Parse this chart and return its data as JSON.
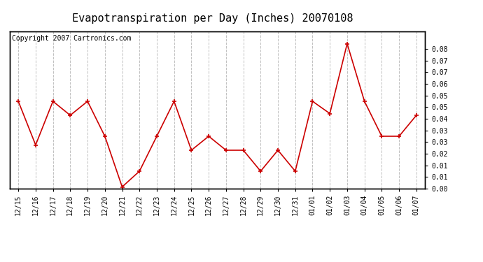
{
  "title": "Evapotranspiration per Day (Inches) 20070108",
  "copyright_text": "Copyright 2007 Cartronics.com",
  "x_labels": [
    "12/15",
    "12/16",
    "12/17",
    "12/18",
    "12/19",
    "12/20",
    "12/21",
    "12/22",
    "12/23",
    "12/24",
    "12/25",
    "12/26",
    "12/27",
    "12/28",
    "12/29",
    "12/30",
    "12/31",
    "01/01",
    "01/02",
    "01/03",
    "01/04",
    "01/05",
    "01/06",
    "01/07"
  ],
  "y_values": [
    0.05,
    0.025,
    0.05,
    0.042,
    0.05,
    0.03,
    0.001,
    0.01,
    0.03,
    0.05,
    0.022,
    0.03,
    0.022,
    0.022,
    0.01,
    0.022,
    0.01,
    0.05,
    0.043,
    0.083,
    0.05,
    0.03,
    0.03,
    0.042
  ],
  "line_color": "#cc0000",
  "marker": "+",
  "marker_color": "#cc0000",
  "bg_color": "#ffffff",
  "grid_color": "#c0c0c0",
  "ylim": [
    0.0,
    0.09
  ],
  "right_tick_positions": [
    0.0,
    0.01,
    0.01,
    0.02,
    0.03,
    0.03,
    0.04,
    0.05,
    0.05,
    0.06,
    0.07,
    0.07,
    0.08
  ],
  "right_tick_labels": [
    "0.00",
    "0.01",
    "0.01",
    "0.02",
    "0.03",
    "0.03",
    "0.04",
    "0.05",
    "0.05",
    "0.06",
    "0.07",
    "0.07",
    "0.08"
  ],
  "title_fontsize": 11,
  "copyright_fontsize": 7,
  "tick_fontsize": 7
}
